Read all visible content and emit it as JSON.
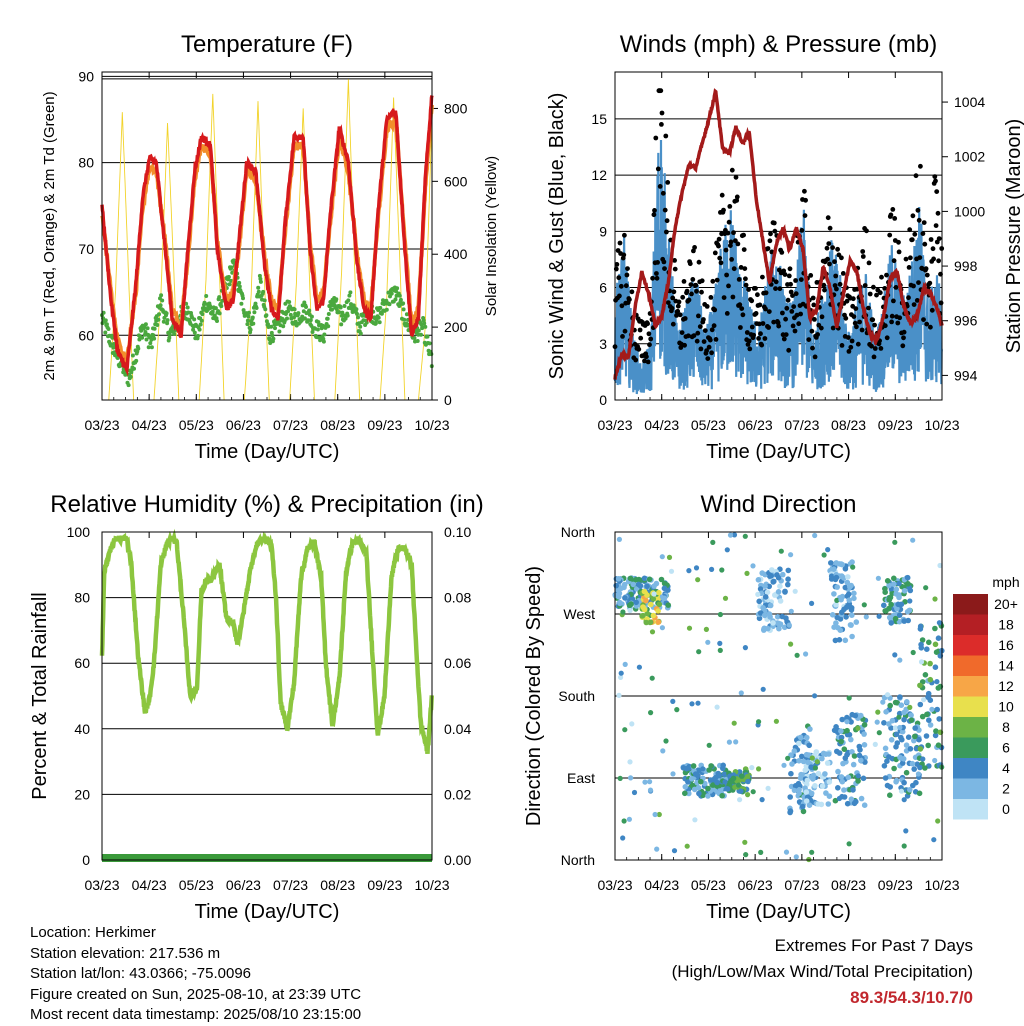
{
  "colors": {
    "temp2m": "#d7191c",
    "temp9m": "#f28e2b",
    "dewpoint": "#4aa83e",
    "solar": "#f2d32b",
    "wind": "#4a90c8",
    "gust": "#000000",
    "pressure": "#a31a1a",
    "rh": "#8cc63f",
    "precip": "#3a9a3a",
    "extremes": "#c1272d"
  },
  "speed_scale": {
    "title": "mph",
    "labels": [
      "20+",
      "18",
      "16",
      "14",
      "12",
      "10",
      "8",
      "6",
      "4",
      "2",
      "0"
    ],
    "colors": [
      "#8b1a1a",
      "#b41f24",
      "#dc2c2a",
      "#f06a2b",
      "#f7a647",
      "#e8e04d",
      "#6cb346",
      "#3a9a5c",
      "#3f86c4",
      "#7cb7e3",
      "#bfe3f5"
    ]
  },
  "chart_data": [
    {
      "type": "line",
      "title": "Temperature (F)",
      "xlabel": "Time (Day/UTC)",
      "ylabel": "2m & 9m T (Red, Orange) & 2m Td (Green)",
      "y2label": "Solar Insolation (Yellow)",
      "x_ticks": [
        "03/23",
        "04/23",
        "05/23",
        "06/23",
        "07/23",
        "08/23",
        "09/23",
        "10/23"
      ],
      "y_ticks": [
        "60",
        "70",
        "80",
        "90"
      ],
      "y2_ticks": [
        "0",
        "200",
        "400",
        "600",
        "800"
      ],
      "ylim": [
        52.5,
        90.5
      ],
      "y2lim": [
        0,
        900
      ],
      "xlim": [
        0,
        7.3
      ],
      "grid": true,
      "series": [
        {
          "name": "2m T",
          "x": [
            0,
            0.2,
            0.35,
            0.55,
            0.75,
            0.9,
            1.05,
            1.2,
            1.4,
            1.55,
            1.75,
            1.9,
            2.05,
            2.2,
            2.4,
            2.55,
            2.75,
            2.9,
            3.05,
            3.2,
            3.4,
            3.6,
            3.75,
            3.9,
            4.05,
            4.25,
            4.45,
            4.6,
            4.75,
            4.9,
            5.05,
            5.25,
            5.45,
            5.65,
            5.8,
            5.95,
            6.1,
            6.3,
            6.5,
            6.7,
            6.85,
            7.0,
            7.15,
            7.3
          ],
          "values": [
            75,
            64,
            58,
            56,
            66,
            76,
            80.5,
            80,
            70,
            62,
            60,
            70,
            79,
            83,
            82,
            70,
            63,
            64,
            72,
            80,
            79,
            68,
            63,
            62,
            73,
            83,
            83,
            70,
            63,
            64,
            74,
            84,
            80,
            68,
            63,
            62,
            74,
            85,
            86,
            70,
            60,
            62,
            78,
            88
          ]
        },
        {
          "name": "9m T",
          "x": [
            0,
            0.2,
            0.35,
            0.55,
            0.75,
            0.9,
            1.05,
            1.2,
            1.4,
            1.55,
            1.75,
            1.9,
            2.05,
            2.2,
            2.4,
            2.55,
            2.75,
            2.9,
            3.05,
            3.2,
            3.4,
            3.6,
            3.75,
            3.9,
            4.05,
            4.25,
            4.45,
            4.6,
            4.75,
            4.9,
            5.05,
            5.25,
            5.45,
            5.65,
            5.8,
            5.95,
            6.1,
            6.3,
            6.5,
            6.7,
            6.85,
            7.0,
            7.15,
            7.3
          ],
          "values": [
            74,
            65,
            59,
            57,
            65,
            75,
            79.5,
            79,
            71,
            63,
            61,
            69,
            78,
            82,
            81,
            71,
            64,
            65,
            71,
            79,
            78,
            69,
            64,
            63,
            72,
            82,
            82,
            71,
            64,
            65,
            73,
            83,
            79,
            69,
            64,
            63,
            73,
            84,
            85,
            71,
            61,
            63,
            77,
            87
          ]
        },
        {
          "name": "2m Td",
          "x": [
            0,
            0.3,
            0.6,
            0.9,
            1.1,
            1.3,
            1.5,
            1.7,
            1.9,
            2.1,
            2.3,
            2.5,
            2.7,
            2.9,
            3.1,
            3.3,
            3.5,
            3.7,
            3.9,
            4.1,
            4.3,
            4.5,
            4.7,
            4.9,
            5.1,
            5.3,
            5.5,
            5.7,
            5.9,
            6.1,
            6.3,
            6.5,
            6.7,
            6.9,
            7.1,
            7.3
          ],
          "values": [
            62,
            58,
            55,
            61,
            59,
            64,
            60,
            62,
            63,
            60,
            64,
            62,
            65,
            68,
            64,
            61,
            66,
            60,
            61,
            63,
            62,
            63,
            61,
            60,
            64,
            62,
            64,
            61,
            63,
            62,
            64,
            65,
            62,
            60,
            61,
            57
          ]
        },
        {
          "name": "Solar",
          "y_axis": "right",
          "x": [
            0,
            0.15,
            0.3,
            0.45,
            0.6,
            0.7,
            0.75,
            1.0,
            1.15,
            1.3,
            1.45,
            1.6,
            1.7,
            1.75,
            2.0,
            2.15,
            2.3,
            2.45,
            2.6,
            2.7,
            2.75,
            3.0,
            3.15,
            3.3,
            3.45,
            3.6,
            3.7,
            3.75,
            4.0,
            4.15,
            4.3,
            4.45,
            4.6,
            4.7,
            4.75,
            5.0,
            5.15,
            5.3,
            5.45,
            5.6,
            5.7,
            5.75,
            6.0,
            6.15,
            6.3,
            6.45,
            6.6,
            6.7,
            6.75,
            7.0,
            7.15,
            7.3
          ],
          "values": [
            0,
            0,
            300,
            790,
            300,
            0,
            0,
            0,
            0,
            280,
            760,
            320,
            0,
            0,
            0,
            0,
            330,
            840,
            340,
            0,
            0,
            0,
            0,
            290,
            820,
            310,
            0,
            0,
            0,
            0,
            320,
            800,
            300,
            0,
            0,
            0,
            0,
            350,
            880,
            320,
            0,
            0,
            0,
            0,
            280,
            830,
            340,
            0,
            0,
            0,
            200,
            780
          ]
        }
      ]
    },
    {
      "type": "line",
      "title": "Winds (mph) & Pressure (mb)",
      "xlabel": "Time (Day/UTC)",
      "ylabel": "Sonic Wind & Gust (Blue, Black)",
      "y2label": "Station Pressure (Maroon)",
      "x_ticks": [
        "03/23",
        "04/23",
        "05/23",
        "06/23",
        "07/23",
        "08/23",
        "09/23",
        "10/23"
      ],
      "y_ticks": [
        "0",
        "3",
        "6",
        "9",
        "12",
        "15"
      ],
      "y2_ticks": [
        "994",
        "996",
        "998",
        "1000",
        "1002",
        "1004"
      ],
      "ylim": [
        0,
        17.5
      ],
      "y2lim": [
        993.1,
        1005.1
      ],
      "xlim": [
        0,
        7.3
      ],
      "grid": true,
      "series": [
        {
          "name": "Sonic Wind",
          "x": [
            0,
            0.2,
            0.4,
            0.6,
            0.8,
            0.9,
            1.0,
            1.2,
            1.4,
            1.6,
            1.8,
            2.0,
            2.2,
            2.4,
            2.6,
            2.8,
            3.0,
            3.2,
            3.4,
            3.6,
            3.8,
            4.0,
            4.2,
            4.4,
            4.6,
            4.8,
            5.0,
            5.2,
            5.4,
            5.6,
            5.8,
            6.0,
            6.2,
            6.4,
            6.6,
            6.8,
            7.0,
            7.2,
            7.3
          ],
          "values": [
            3,
            5,
            2,
            1,
            2,
            6,
            9,
            5,
            2,
            3,
            4,
            2,
            3,
            5,
            6,
            4,
            3,
            2,
            4,
            5,
            3,
            3,
            6,
            2,
            3,
            5,
            4,
            2,
            3,
            4,
            2,
            3,
            5,
            3,
            4,
            6,
            3,
            4,
            3
          ]
        },
        {
          "name": "Gust",
          "x": [
            0,
            0.2,
            0.4,
            0.6,
            0.8,
            0.9,
            1.0,
            1.2,
            1.4,
            1.6,
            1.8,
            2.0,
            2.2,
            2.4,
            2.6,
            2.8,
            3.0,
            3.2,
            3.4,
            3.6,
            3.8,
            4.0,
            4.2,
            4.4,
            4.6,
            4.8,
            5.0,
            5.2,
            5.4,
            5.6,
            5.8,
            6.0,
            6.2,
            6.4,
            6.6,
            6.8,
            7.0,
            7.2,
            7.3
          ],
          "values": [
            5,
            7,
            4,
            3,
            4,
            10,
            15,
            8,
            4,
            5,
            6,
            4,
            5,
            8,
            10,
            7,
            5,
            4,
            6,
            8,
            5,
            5,
            9,
            4,
            5,
            8,
            6,
            4,
            5,
            7,
            4,
            5,
            8,
            5,
            7,
            10,
            5,
            12,
            6
          ]
        },
        {
          "name": "Pressure",
          "y_axis": "right",
          "x": [
            0,
            0.15,
            0.3,
            0.45,
            0.6,
            0.75,
            0.9,
            1.05,
            1.2,
            1.35,
            1.5,
            1.65,
            1.8,
            1.95,
            2.1,
            2.25,
            2.4,
            2.55,
            2.7,
            2.85,
            3.0,
            3.15,
            3.3,
            3.45,
            3.6,
            3.75,
            3.9,
            4.05,
            4.2,
            4.35,
            4.5,
            4.65,
            4.8,
            4.95,
            5.1,
            5.25,
            5.4,
            5.55,
            5.7,
            5.85,
            6.0,
            6.15,
            6.3,
            6.45,
            6.6,
            6.75,
            6.9,
            7.05,
            7.2,
            7.3
          ],
          "values": [
            993.9,
            994.8,
            994.7,
            996.5,
            997.8,
            997.0,
            995.8,
            996.2,
            997.5,
            999.5,
            1000.7,
            1001.7,
            1001.6,
            1002.5,
            1003.4,
            1004.4,
            1002.3,
            1002.1,
            1003.1,
            1002.5,
            1002.9,
            1000.5,
            998.9,
            997.4,
            998.8,
            999.4,
            998.6,
            999.4,
            998.6,
            996.1,
            996.4,
            998.0,
            997.2,
            995.8,
            997.0,
            998.2,
            997.8,
            996.4,
            995.5,
            995.3,
            996.2,
            997.6,
            997.8,
            996.5,
            995.9,
            996.2,
            997.2,
            997.0,
            996.4,
            995.8
          ]
        }
      ]
    },
    {
      "type": "line",
      "title": "Relative Humidity (%) & Precipitation (in)",
      "xlabel": "Time (Day/UTC)",
      "ylabel": "Percent & Total Rainfall",
      "x_ticks": [
        "03/23",
        "04/23",
        "05/23",
        "06/23",
        "07/23",
        "08/23",
        "09/23",
        "10/23"
      ],
      "y_ticks": [
        "0",
        "20",
        "40",
        "60",
        "80",
        "100"
      ],
      "y2_ticks": [
        "0.00",
        "0.02",
        "0.04",
        "0.06",
        "0.08",
        "0.10"
      ],
      "ylim": [
        0,
        100
      ],
      "y2lim": [
        0,
        0.1
      ],
      "xlim": [
        0,
        7.3
      ],
      "grid": true,
      "series": [
        {
          "name": "RH",
          "x": [
            0,
            0.05,
            0.15,
            0.3,
            0.45,
            0.55,
            0.65,
            0.8,
            0.95,
            1.05,
            1.15,
            1.3,
            1.45,
            1.55,
            1.65,
            1.8,
            1.95,
            2.1,
            2.2,
            2.3,
            2.45,
            2.6,
            2.75,
            2.9,
            3.0,
            3.1,
            3.3,
            3.45,
            3.6,
            3.75,
            3.85,
            3.95,
            4.1,
            4.25,
            4.4,
            4.55,
            4.7,
            4.85,
            4.95,
            5.1,
            5.25,
            5.4,
            5.55,
            5.7,
            5.85,
            5.95,
            6.1,
            6.25,
            6.4,
            6.55,
            6.7,
            6.85,
            6.95,
            7.05,
            7.2,
            7.3
          ],
          "values": [
            62,
            88,
            93,
            98,
            98,
            98,
            90,
            62,
            45,
            49,
            60,
            90,
            97,
            98,
            97,
            75,
            50,
            52,
            82,
            85,
            86,
            90,
            74,
            72,
            66,
            73,
            90,
            97,
            98,
            96,
            80,
            48,
            40,
            54,
            86,
            95,
            97,
            86,
            60,
            41,
            55,
            88,
            97,
            97,
            93,
            70,
            38,
            50,
            86,
            95,
            95,
            90,
            65,
            42,
            33,
            50
          ]
        },
        {
          "name": "Precipitation",
          "y_axis": "right",
          "x": [
            0,
            7.3
          ],
          "values": [
            0,
            0
          ]
        }
      ]
    },
    {
      "type": "scatter",
      "title": "Wind Direction",
      "xlabel": "Time (Day/UTC)",
      "ylabel": "Direction (Colored By Speed)",
      "x_ticks": [
        "03/23",
        "04/23",
        "05/23",
        "06/23",
        "07/23",
        "08/23",
        "09/23",
        "10/23"
      ],
      "y_ticks": [
        "North",
        "East",
        "South",
        "West",
        "North"
      ],
      "ylim": [
        0,
        360
      ],
      "xlim": [
        0,
        7.3
      ],
      "grid": true,
      "clusters": [
        {
          "x": [
            0,
            1.2
          ],
          "dir": [
            275,
            310
          ],
          "speed": 3.5
        },
        {
          "x": [
            0.6,
            1.0
          ],
          "dir": [
            260,
            295
          ],
          "speed": 9
        },
        {
          "x": [
            1.5,
            2.5
          ],
          "dir": [
            70,
            105
          ],
          "speed": 4
        },
        {
          "x": [
            2.5,
            3.0
          ],
          "dir": [
            75,
            100
          ],
          "speed": 6
        },
        {
          "x": [
            3.2,
            3.9
          ],
          "dir": [
            250,
            320
          ],
          "speed": 2.5
        },
        {
          "x": [
            3.9,
            4.4
          ],
          "dir": [
            50,
            150
          ],
          "speed": 3
        },
        {
          "x": [
            4.2,
            4.8
          ],
          "dir": [
            60,
            120
          ],
          "speed": 2
        },
        {
          "x": [
            4.8,
            5.4
          ],
          "dir": [
            240,
            330
          ],
          "speed": 2.5
        },
        {
          "x": [
            4.9,
            5.6
          ],
          "dir": [
            60,
            160
          ],
          "speed": 3.5
        },
        {
          "x": [
            6.0,
            6.6
          ],
          "dir": [
            260,
            310
          ],
          "speed": 4
        },
        {
          "x": [
            6.0,
            6.8
          ],
          "dir": [
            70,
            180
          ],
          "speed": 3.5
        },
        {
          "x": [
            6.8,
            7.3
          ],
          "dir": [
            100,
            260
          ],
          "speed": 5
        }
      ]
    }
  ],
  "info": {
    "location": "Location: Herkimer",
    "elevation": "Station elevation: 217.536 m",
    "latlon": "Station lat/lon: 43.0366; -75.0096",
    "created": "Figure created on Sun, 2025-08-10, at 23:39 UTC",
    "recent": "Most recent data timestamp: 2025/08/10 23:15:00"
  },
  "extremes": {
    "line1": "Extremes For Past 7 Days",
    "line2": "(High/Low/Max Wind/Total Precipitation)",
    "values": "89.3/54.3/10.7/0"
  }
}
